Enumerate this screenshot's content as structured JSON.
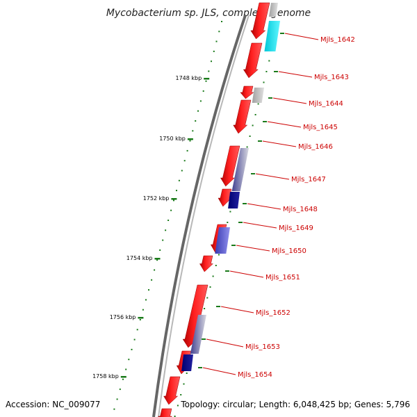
{
  "title": "Mycobacterium sp. JLS, complete genome",
  "accession_text": "Accession: NC_009077",
  "summary_text": "Topology: circular; Length: 6,048,425 bp; Genes: 5,796",
  "colors": {
    "backbone": "#8a8a8a",
    "forward_gene": "#ff0000",
    "tick": "#1a7a1a",
    "label": "#cc0000",
    "cyan_feature": "#00e5ee",
    "navy_feature": "#000080",
    "slate_feature": "#5050c8",
    "grey_feature": "#b0b0b0"
  },
  "scale_ticks": [
    "1748 kbp",
    "1750 kbp",
    "1752 kbp",
    "1754 kbp",
    "1756 kbp",
    "1758 kbp"
  ],
  "gene_labels": [
    "Mjls_1642",
    "Mjls_1643",
    "Mjls_1644",
    "Mjls_1645",
    "Mjls_1646",
    "Mjls_1647",
    "Mjls_1648",
    "Mjls_1649",
    "Mjls_1650",
    "Mjls_1651",
    "Mjls_1652",
    "Mjls_1653",
    "Mjls_1654"
  ]
}
